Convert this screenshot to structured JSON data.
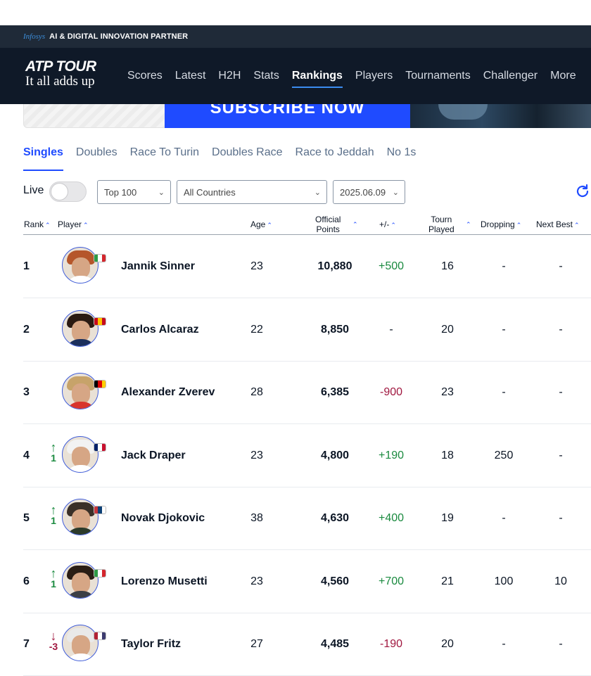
{
  "partner": {
    "brand": "Infosys",
    "text": "AI & DIGITAL INNOVATION PARTNER"
  },
  "logo": {
    "main": "ATP TOUR",
    "tagline": "It all adds up"
  },
  "nav": {
    "items": [
      "Scores",
      "Latest",
      "H2H",
      "Stats",
      "Rankings",
      "Players",
      "Tournaments",
      "Challenger",
      "More"
    ],
    "active": "Rankings"
  },
  "banner": {
    "cta": "SUBSCRIBE NOW"
  },
  "tabs": {
    "items": [
      "Singles",
      "Doubles",
      "Race To Turin",
      "Doubles Race",
      "Race to Jeddah",
      "No 1s"
    ],
    "active": "Singles"
  },
  "filters": {
    "live_label": "Live",
    "range": "Top 100",
    "country": "All Countries",
    "date": "2025.06.09",
    "live_on": false
  },
  "columns": {
    "rank": "Rank",
    "player": "Player",
    "age": "Age",
    "points_l1": "Official",
    "points_l2": "Points",
    "change": "+/-",
    "played_l1": "Tourn",
    "played_l2": "Played",
    "dropping": "Dropping",
    "next_best": "Next Best"
  },
  "players": [
    {
      "rank": "1",
      "move": "",
      "move_dir": "",
      "name": "Jannik Sinner",
      "age": "23",
      "points": "10,880",
      "change": "+500",
      "change_type": "pos",
      "played": "16",
      "dropping": "-",
      "next_best": "-",
      "flag": [
        "#2e9a46",
        "#ffffff",
        "#d4262d"
      ],
      "hair": "#b5562b",
      "shirt": "#ffffff"
    },
    {
      "rank": "2",
      "move": "",
      "move_dir": "",
      "name": "Carlos Alcaraz",
      "age": "22",
      "points": "8,850",
      "change": "-",
      "change_type": "",
      "played": "20",
      "dropping": "-",
      "next_best": "-",
      "flag": [
        "#c60b1e",
        "#ffc400",
        "#c60b1e"
      ],
      "hair": "#2a1a12",
      "shirt": "#1b2f5c"
    },
    {
      "rank": "3",
      "move": "",
      "move_dir": "",
      "name": "Alexander Zverev",
      "age": "28",
      "points": "6,385",
      "change": "-900",
      "change_type": "neg",
      "played": "23",
      "dropping": "-",
      "next_best": "-",
      "flag": [
        "#000000",
        "#dd0000",
        "#ffce00"
      ],
      "hair": "#c7a36a",
      "shirt": "#d8342c"
    },
    {
      "rank": "4",
      "move": "1",
      "move_dir": "up",
      "name": "Jack Draper",
      "age": "23",
      "points": "4,800",
      "change": "+190",
      "change_type": "pos",
      "played": "18",
      "dropping": "250",
      "next_best": "-",
      "flag": [
        "#012169",
        "#ffffff",
        "#c8102e"
      ],
      "hair": "#f2f2f2",
      "shirt": "#ffffff"
    },
    {
      "rank": "5",
      "move": "1",
      "move_dir": "up",
      "name": "Novak Djokovic",
      "age": "38",
      "points": "4,630",
      "change": "+400",
      "change_type": "pos",
      "played": "19",
      "dropping": "-",
      "next_best": "-",
      "flag": [
        "#c6363c",
        "#0c4076",
        "#ffffff"
      ],
      "hair": "#3a3028",
      "shirt": "#2c3a2a"
    },
    {
      "rank": "6",
      "move": "1",
      "move_dir": "up",
      "name": "Lorenzo Musetti",
      "age": "23",
      "points": "4,560",
      "change": "+700",
      "change_type": "pos",
      "played": "21",
      "dropping": "100",
      "next_best": "10",
      "flag": [
        "#2e9a46",
        "#ffffff",
        "#d4262d"
      ],
      "hair": "#2a1d14",
      "shirt": "#3b3f45"
    },
    {
      "rank": "7",
      "move": "-3",
      "move_dir": "down",
      "name": "Taylor Fritz",
      "age": "27",
      "points": "4,485",
      "change": "-190",
      "change_type": "neg",
      "played": "20",
      "dropping": "-",
      "next_best": "-",
      "flag": [
        "#b22234",
        "#ffffff",
        "#3c3b6e"
      ],
      "hair": "#e9e9e9",
      "shirt": "#ffffff"
    }
  ]
}
